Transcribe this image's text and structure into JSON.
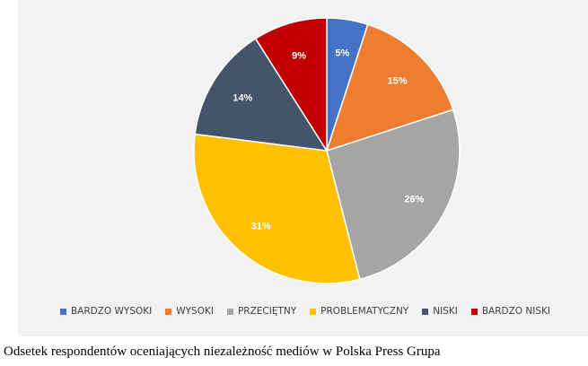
{
  "chart_data": {
    "type": "pie",
    "start_angle_deg": 0,
    "direction": "clockwise",
    "categories": [
      "BARDZO WYSOKI",
      "WYSOKI",
      "PRZECIĘTNY",
      "PROBLEMATYCZNY",
      "NISKI",
      "BARDZO NISKI"
    ],
    "values": [
      5,
      15,
      26,
      31,
      14,
      9
    ],
    "data_labels": [
      "5%",
      "15%",
      "26%",
      "31%",
      "14%",
      "9%"
    ],
    "colors": [
      "#4472c4",
      "#ed7d31",
      "#a5a5a5",
      "#ffc000",
      "#44546a",
      "#c00000"
    ],
    "label_colors": [
      "#ffffff",
      "#ffffff",
      "#ffffff",
      "#ffffff",
      "#ffffff",
      "#ffffff"
    ],
    "legend_position": "bottom"
  },
  "caption": "Odsetek respondentów oceniających niezależność mediów w Polska Press Grupa"
}
